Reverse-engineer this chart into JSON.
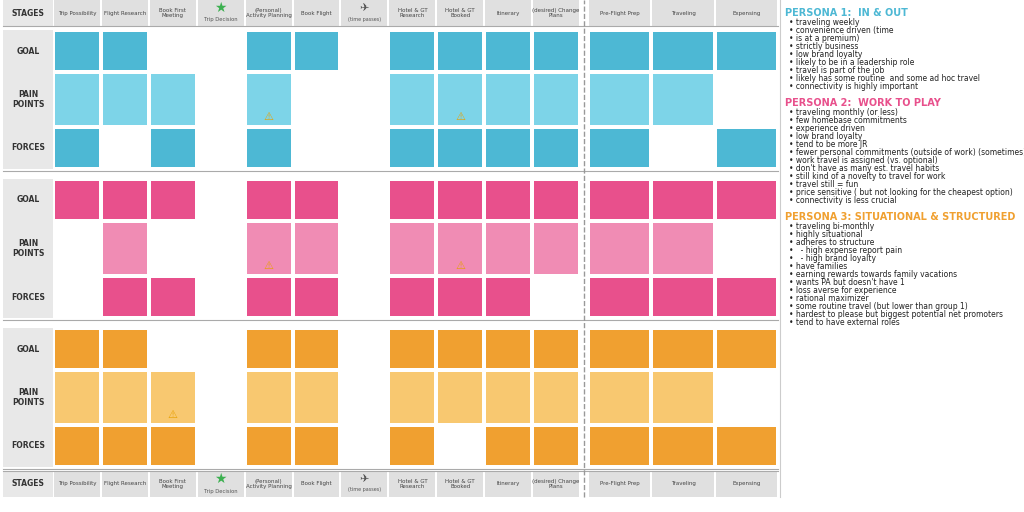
{
  "white": "#ffffff",
  "persona1_color": "#4db8d4",
  "persona1_pain_color": "#7dd4e8",
  "persona2_color": "#e8508c",
  "persona2_pain_color": "#f08cb4",
  "persona3_color": "#f0a030",
  "persona3_pain_color": "#f8c870",
  "stage_bg": "#e0e0e0",
  "label_bg": "#e8e8e8",
  "persona1_title": "PERSONA 1:  IN & OUT",
  "persona1_title_color": "#4db8d4",
  "persona2_title": "PERSONA 2:  WORK TO PLAY",
  "persona2_title_color": "#e8508c",
  "persona3_title": "PERSONA 3: SITUATIONAL & STRUCTURED",
  "persona3_title_color": "#f0a030",
  "persona1_bullets": [
    "traveling weekly",
    "convenience driven (time",
    "is at a premium)",
    "strictly business",
    "low brand loyalty",
    "likely to be in a leadership role",
    "travel is part of the job",
    "likely has some routine  and some ad hoc travel",
    "connectivity is highly important"
  ],
  "persona2_bullets": [
    "traveling monthly (or less)",
    "few homebase commitments",
    "experience driven",
    "low brand loyalty",
    "tend to be more JR",
    "fewer personal commitments (outside of work) (sometimes)",
    "work travel is assigned (vs. optional)",
    "don't have as many est. travel habits",
    "still kind of a novelty to travel for work",
    "travel still = fun",
    "price sensitive ( but not looking for the cheapest option)",
    "connectivity is less crucial"
  ],
  "persona3_bullets": [
    "traveling bi-monthly",
    "highly situational",
    "adheres to structure",
    "  - high expense report pain",
    "  - high brand loyalty",
    "have families",
    "earning rewards towards family vacations",
    "wants PA but doesn't have 1",
    "loss averse for experience",
    "rational maximizer",
    "some routine travel (but lower than group 1)",
    "hardest to please but biggest potential net promoters",
    "tend to have external roles"
  ],
  "stage_labels": [
    "Trip Possibility",
    "Flight Research",
    "Book First\nMeeting",
    "Trip Decision",
    "(Personal)\nActivity Planning",
    "Book Flight",
    "(time passes)",
    "Hotel & GT\nResearch",
    "Hotel & GT\nBooked",
    "Itinerary",
    "(desired) Change\nPlans",
    "Pre-Flight Prep",
    "Traveling",
    "Expensing"
  ],
  "p1_goal_cols": [
    0,
    1,
    4,
    5,
    7,
    8,
    9,
    10,
    11,
    12,
    13
  ],
  "p1_pain_cols": [
    0,
    1,
    2,
    4,
    7,
    8,
    9,
    10,
    11,
    12
  ],
  "p1_force_cols": [
    0,
    2,
    4,
    7,
    8,
    9,
    10,
    11,
    13
  ],
  "p1_pain_warn": [
    4,
    8
  ],
  "p2_goal_cols": [
    0,
    1,
    2,
    4,
    5,
    7,
    8,
    9,
    10,
    11,
    12,
    13
  ],
  "p2_pain_cols": [
    1,
    4,
    5,
    7,
    8,
    9,
    10,
    11,
    12
  ],
  "p2_force_cols": [
    1,
    2,
    4,
    5,
    7,
    8,
    9,
    11,
    12,
    13
  ],
  "p2_pain_warn": [
    4,
    8
  ],
  "p3_goal_cols": [
    0,
    1,
    4,
    5,
    7,
    8,
    9,
    10,
    11,
    12,
    13
  ],
  "p3_pain_cols": [
    0,
    1,
    2,
    4,
    5,
    7,
    8,
    9,
    10,
    11,
    12
  ],
  "p3_force_cols": [
    0,
    1,
    2,
    4,
    5,
    7,
    9,
    10,
    11,
    12,
    13
  ],
  "p3_pain_warn": [
    2
  ]
}
